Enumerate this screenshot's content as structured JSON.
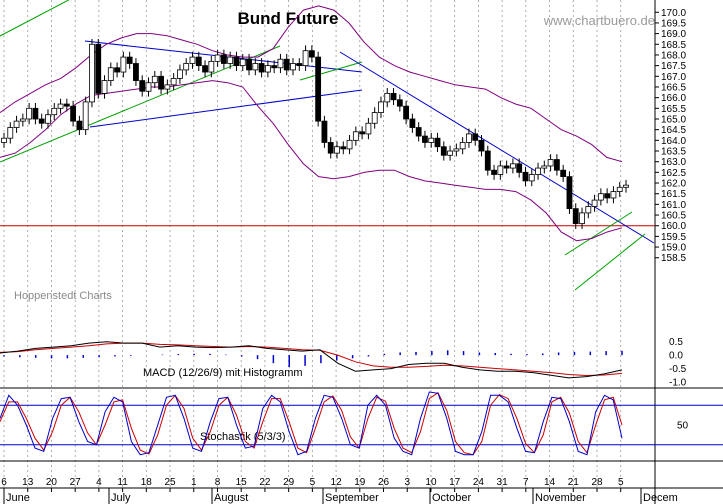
{
  "chart_data": {
    "type": "candlestick",
    "title": "Bund Future",
    "watermark": "www.chartbuero.de",
    "source_label": "Hoppenstedt Charts",
    "colors": {
      "band": "#800080",
      "trend": "#0000cc",
      "channel": "#00a000",
      "support": "#cc0000",
      "macd": "#000000",
      "signal": "#cc0000",
      "histogram": "#0000cc",
      "stoch_k": "#0000cc",
      "stoch_d": "#cc0000",
      "grid": "#9a9a9a"
    },
    "price_axis": {
      "min": 158.3,
      "max": 170.2,
      "ticks": [
        "170.0",
        "169.5",
        "169.0",
        "168.5",
        "168.0",
        "167.5",
        "167.0",
        "166.5",
        "166.0",
        "165.5",
        "165.0",
        "164.5",
        "164.0",
        "163.5",
        "163.0",
        "162.5",
        "162.0",
        "161.5",
        "161.0",
        "160.5",
        "160.0",
        "159.5",
        "159.0",
        "158.5"
      ]
    },
    "x_axis": {
      "day_ticks": [
        "6",
        "13",
        "20",
        "27",
        "4",
        "11",
        "18",
        "25",
        "1",
        "8",
        "15",
        "22",
        "29",
        "5",
        "12",
        "19",
        "26",
        "3",
        "10",
        "17",
        "24",
        "31",
        "7",
        "14",
        "21",
        "28",
        "5"
      ],
      "months": [
        "June",
        "July",
        "August",
        "September",
        "October",
        "November",
        "Decem"
      ]
    },
    "closes": [
      164.1,
      164.6,
      164.9,
      165.0,
      165.5,
      165.0,
      164.8,
      165.2,
      165.5,
      165.7,
      165.6,
      164.9,
      164.5,
      165.8,
      168.5,
      166.2,
      166.8,
      167.4,
      167.2,
      167.9,
      167.6,
      166.8,
      166.3,
      166.7,
      167.0,
      166.4,
      166.6,
      166.9,
      167.3,
      167.6,
      167.9,
      167.5,
      167.2,
      167.7,
      168.0,
      167.6,
      167.9,
      167.5,
      167.8,
      167.3,
      167.6,
      167.2,
      167.5,
      167.4,
      167.8,
      167.3,
      167.6,
      167.5,
      168.2,
      167.9,
      164.9,
      163.9,
      163.4,
      163.7,
      163.6,
      164.0,
      164.4,
      164.3,
      164.8,
      165.3,
      165.8,
      166.2,
      165.9,
      165.6,
      165.0,
      164.6,
      164.2,
      163.9,
      164.1,
      163.7,
      163.3,
      163.5,
      163.6,
      163.9,
      164.3,
      164.0,
      163.5,
      162.6,
      162.4,
      162.8,
      162.7,
      162.9,
      162.5,
      162.1,
      162.4,
      162.7,
      162.8,
      163.1,
      162.6,
      162.3,
      160.8,
      160.1,
      160.6,
      160.9,
      161.2,
      161.5,
      161.3,
      161.6,
      161.8,
      161.9
    ],
    "bollinger_upper": [
      165.3,
      165.8,
      166.2,
      166.6,
      166.9,
      167.4,
      168.0,
      168.5,
      168.8,
      169.0,
      169.0,
      168.9,
      168.7,
      168.5,
      168.2,
      168.0,
      167.9,
      167.9,
      168.3,
      169.3,
      170.1,
      170.3,
      170.1,
      169.5,
      168.6,
      167.9,
      167.5,
      167.2,
      167.0,
      166.8,
      166.6,
      166.5,
      166.4,
      166.0,
      165.7,
      165.5,
      165.0,
      164.5,
      164.2,
      163.8,
      163.2,
      163.0
    ],
    "bollinger_lower": [
      163.2,
      163.4,
      163.9,
      164.5,
      165.2,
      165.7,
      166.1,
      166.2,
      166.3,
      166.4,
      166.5,
      166.5,
      166.6,
      166.7,
      166.8,
      166.7,
      166.5,
      165.6,
      164.8,
      163.8,
      162.9,
      162.3,
      162.2,
      162.3,
      162.5,
      162.6,
      162.6,
      162.3,
      162.1,
      162.0,
      161.9,
      161.8,
      161.7,
      161.7,
      161.6,
      161.2,
      160.6,
      159.7,
      159.3,
      159.4,
      159.7,
      159.9
    ],
    "support_level": 160.0,
    "macd": {
      "label": "MACD (12/26/9) mit Histogramm",
      "ticks": [
        "0.5",
        "0.0",
        "-0.5",
        "-1.0"
      ],
      "min": -1.15,
      "max": 0.75,
      "macd_line": [
        0.08,
        0.15,
        0.25,
        0.3,
        0.35,
        0.45,
        0.5,
        0.45,
        0.45,
        0.3,
        0.35,
        0.3,
        0.28,
        0.3,
        0.35,
        0.25,
        0.2,
        0.15,
        0.2,
        -0.3,
        -0.6,
        -0.55,
        -0.5,
        -0.35,
        -0.3,
        -0.3,
        -0.45,
        -0.55,
        -0.6,
        -0.6,
        -0.65,
        -0.75,
        -0.85,
        -0.8,
        -0.7,
        -0.55
      ],
      "signal_line": [
        0.1,
        0.13,
        0.2,
        0.25,
        0.3,
        0.35,
        0.42,
        0.45,
        0.45,
        0.4,
        0.38,
        0.35,
        0.32,
        0.3,
        0.32,
        0.3,
        0.25,
        0.2,
        0.18,
        0.0,
        -0.25,
        -0.4,
        -0.45,
        -0.45,
        -0.42,
        -0.38,
        -0.4,
        -0.45,
        -0.5,
        -0.55,
        -0.6,
        -0.65,
        -0.72,
        -0.76,
        -0.74,
        -0.68
      ],
      "histogram": [
        -0.05,
        -0.08,
        -0.1,
        -0.12,
        -0.12,
        -0.1,
        -0.08,
        -0.05,
        -0.03,
        0.0,
        0.02,
        0.04,
        0.05,
        0.05,
        0.02,
        -0.05,
        -0.15,
        -0.3,
        -0.45,
        -0.4,
        -0.3,
        -0.2,
        -0.12,
        -0.05,
        0.05,
        0.1,
        0.12,
        0.15,
        0.18,
        0.15,
        0.1,
        0.08,
        0.05,
        0.04,
        0.06,
        0.1,
        0.12,
        0.13,
        0.15,
        0.16
      ]
    },
    "stochastic": {
      "label": "Stochastik (5/3/3)",
      "ticks": [
        "50"
      ],
      "overbought": 80,
      "oversold": 20,
      "k_line": [
        60,
        95,
        80,
        50,
        15,
        10,
        60,
        90,
        92,
        55,
        25,
        20,
        70,
        92,
        85,
        25,
        5,
        8,
        50,
        92,
        95,
        60,
        15,
        10,
        55,
        90,
        92,
        50,
        15,
        18,
        75,
        95,
        85,
        40,
        5,
        10,
        60,
        95,
        92,
        60,
        20,
        15,
        80,
        95,
        80,
        30,
        10,
        5,
        60,
        100,
        98,
        60,
        10,
        5,
        5,
        40,
        95,
        95,
        85,
        45,
        10,
        8,
        55,
        92,
        90,
        55,
        10,
        5,
        70,
        95,
        88,
        30
      ],
      "d_line": [
        55,
        85,
        85,
        60,
        30,
        12,
        40,
        80,
        92,
        70,
        38,
        20,
        50,
        85,
        88,
        45,
        12,
        6,
        35,
        80,
        95,
        75,
        30,
        12,
        40,
        80,
        92,
        65,
        25,
        15,
        55,
        90,
        90,
        55,
        15,
        8,
        45,
        85,
        94,
        72,
        32,
        15,
        60,
        92,
        86,
        45,
        15,
        8,
        40,
        90,
        99,
        72,
        25,
        8,
        5,
        25,
        80,
        96,
        90,
        60,
        22,
        8,
        35,
        85,
        92,
        68,
        25,
        8,
        50,
        88,
        92,
        50
      ]
    }
  }
}
